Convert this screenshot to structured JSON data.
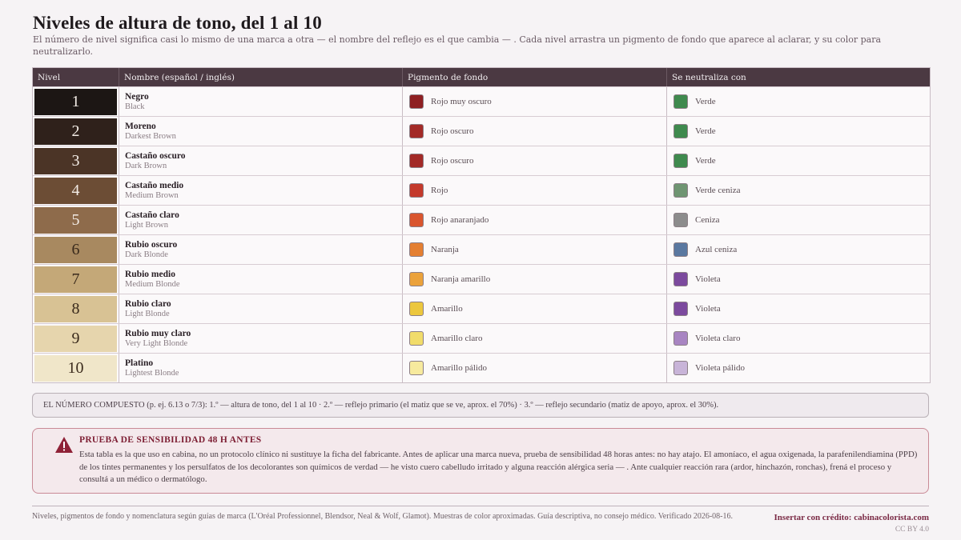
{
  "title": "Niveles de altura de tono, del 1 al 10",
  "subtitle": "El número de nivel significa casi lo mismo de una marca a otra — el nombre del reflejo es el que cambia — . Cada nivel arrastra un pigmento de fondo que aparece al aclarar, y su color para neutralizarlo.",
  "columns": [
    "Nivel",
    "Nombre (español / inglés)",
    "Pigmento de fondo",
    "Se neutraliza con"
  ],
  "rows": [
    {
      "level": "1",
      "es": "Negro",
      "en": "Black",
      "level_color": "#1c1614",
      "level_text_color": "#f3ece6",
      "pigment": "Rojo muy oscuro",
      "pigment_color": "#8e1f22",
      "neutral": "Verde",
      "neutral_color": "#3f8a4e"
    },
    {
      "level": "2",
      "es": "Moreno",
      "en": "Darkest Brown",
      "level_color": "#2f211b",
      "level_text_color": "#f3ece6",
      "pigment": "Rojo oscuro",
      "pigment_color": "#a32a27",
      "neutral": "Verde",
      "neutral_color": "#3f8a4e"
    },
    {
      "level": "3",
      "es": "Castaño oscuro",
      "en": "Dark Brown",
      "level_color": "#4b3426",
      "level_text_color": "#f3ece6",
      "pigment": "Rojo oscuro",
      "pigment_color": "#a32a27",
      "neutral": "Verde",
      "neutral_color": "#3f8a4e"
    },
    {
      "level": "4",
      "es": "Castaño medio",
      "en": "Medium Brown",
      "level_color": "#6c4d35",
      "level_text_color": "#f3ece6",
      "pigment": "Rojo",
      "pigment_color": "#c43a2c",
      "neutral": "Verde ceniza",
      "neutral_color": "#6f9572"
    },
    {
      "level": "5",
      "es": "Castaño claro",
      "en": "Light Brown",
      "level_color": "#8e6b4b",
      "level_text_color": "#f3ece6",
      "pigment": "Rojo anaranjado",
      "pigment_color": "#d9552e",
      "neutral": "Ceniza",
      "neutral_color": "#8c8c8c"
    },
    {
      "level": "6",
      "es": "Rubio oscuro",
      "en": "Dark Blonde",
      "level_color": "#a88960",
      "level_text_color": "#3a2a1c",
      "pigment": "Naranja",
      "pigment_color": "#e47f31",
      "neutral": "Azul ceniza",
      "neutral_color": "#5a78a0"
    },
    {
      "level": "7",
      "es": "Rubio medio",
      "en": "Medium Blonde",
      "level_color": "#c4a878",
      "level_text_color": "#3a2a1c",
      "pigment": "Naranja amarillo",
      "pigment_color": "#eba23b",
      "neutral": "Violeta",
      "neutral_color": "#7c4a9e"
    },
    {
      "level": "8",
      "es": "Rubio claro",
      "en": "Light Blonde",
      "level_color": "#d8c294",
      "level_text_color": "#3a2a1c",
      "pigment": "Amarillo",
      "pigment_color": "#ecc73d",
      "neutral": "Violeta",
      "neutral_color": "#7c4a9e"
    },
    {
      "level": "9",
      "es": "Rubio muy claro",
      "en": "Very Light Blonde",
      "level_color": "#e6d5ad",
      "level_text_color": "#3a2a1c",
      "pigment": "Amarillo claro",
      "pigment_color": "#f1dc6a",
      "neutral": "Violeta claro",
      "neutral_color": "#a885c2"
    },
    {
      "level": "10",
      "es": "Platino",
      "en": "Lightest Blonde",
      "level_color": "#f0e6c9",
      "level_text_color": "#3a2a1c",
      "pigment": "Amarillo pálido",
      "pigment_color": "#f7ea9e",
      "neutral": "Violeta pálido",
      "neutral_color": "#c8b4d8"
    }
  ],
  "note": "EL NÚMERO COMPUESTO (p. ej. 6.13 o 7/3): 1.º — altura de tono, del 1 al 10 · 2.º — reflejo primario (el matiz que se ve, aprox. el 70%) · 3.º — reflejo secundario (matiz de apoyo, aprox. el 30%).",
  "warning": {
    "title": "PRUEBA DE SENSIBILIDAD 48 H ANTES",
    "body": "Esta tabla es la que uso en cabina, no un protocolo clínico ni sustituye la ficha del fabricante. Antes de aplicar una marca nueva, prueba de sensibilidad 48 horas antes: no hay atajo. El amoníaco, el agua oxigenada, la parafenilendiamina (PPD) de los tintes permanentes y los persulfatos de los decolorantes son químicos de verdad — he visto cuero cabelludo irritado y alguna reacción alérgica seria — . Ante cualquier reacción rara (ardor, hinchazón, ronchas), frená el proceso y consultá a un médico o dermatólogo."
  },
  "footer": {
    "left": "Niveles, pigmentos de fondo y nomenclatura según guías de marca (L'Oréal Professionnel, Blendsor, Neal & Wolf, Glamot). Muestras de color aproximadas. Guía descriptiva, no consejo médico. Verificado 2026-08-16.",
    "credit": "Insertar con crédito: cabinacolorista.com",
    "license": "CC BY 4.0"
  },
  "colors": {
    "header_bg": "#4b3942",
    "warning_accent": "#7d1e33",
    "background": "#f6f3f5"
  }
}
